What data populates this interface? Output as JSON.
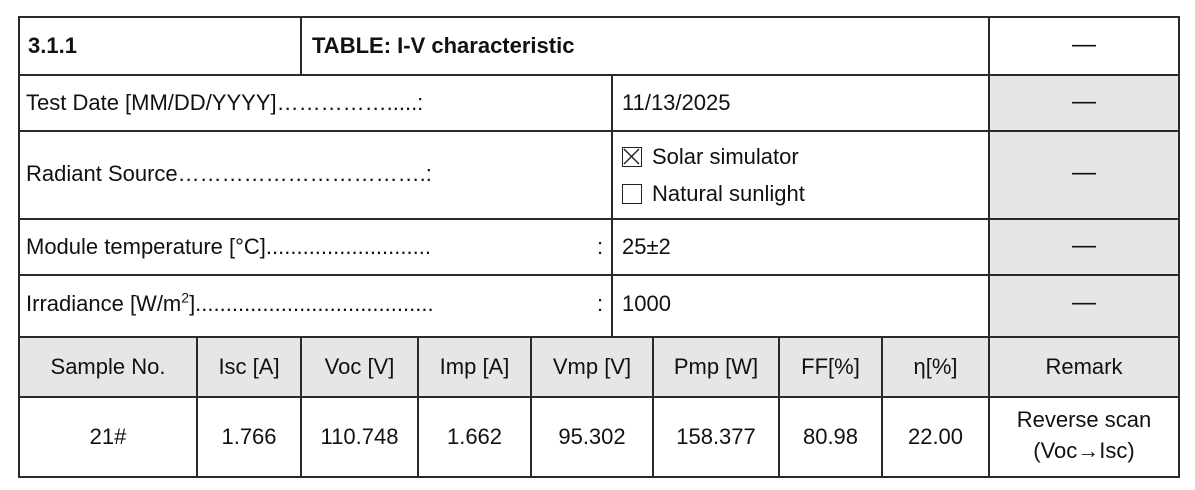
{
  "section": {
    "number": "3.1.1",
    "title": "TABLE: I-V characteristic",
    "verdict": "—"
  },
  "info_rows": [
    {
      "label": "Test Date [MM/DD/YYYY]…………….....:",
      "value": "11/13/2025",
      "verdict": "—"
    },
    {
      "label": "Radiant Source…………………………….:",
      "verdict": "—",
      "options": [
        {
          "label": "Solar simulator",
          "checked": true
        },
        {
          "label": "Natural sunlight",
          "checked": false
        }
      ]
    },
    {
      "label": "Module temperature [°C]...........................",
      "colon": ":",
      "value": "25±2",
      "verdict": "—"
    },
    {
      "label_prefix": "Irradiance [W/m",
      "label_sup": "2",
      "label_suffix": "].......................................",
      "colon": ":",
      "value": "1000",
      "verdict": "—"
    }
  ],
  "table": {
    "headers": [
      "Sample No.",
      "Isc [A]",
      "Voc [V]",
      "Imp [A]",
      "Vmp [V]",
      "Pmp [W]",
      "FF[%]",
      "η[%]",
      "Remark"
    ],
    "rows": [
      {
        "sample": "21#",
        "isc": "1.766",
        "voc": "110.748",
        "imp": "1.662",
        "vmp": "95.302",
        "pmp": "158.377",
        "ff": "80.98",
        "eta": "22.00",
        "remark_line1": "Reverse scan",
        "remark_line2": "(Voc→Isc)"
      }
    ]
  },
  "colors": {
    "grid": "#2a2a2a",
    "shade": "#e6e6e6"
  }
}
